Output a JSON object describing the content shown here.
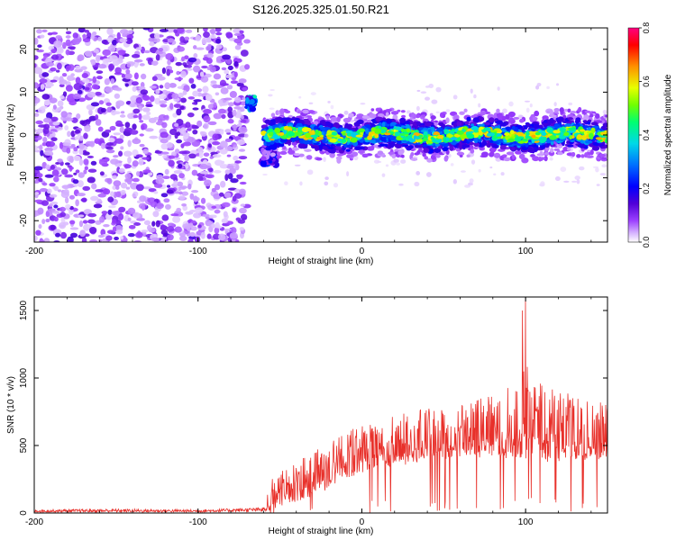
{
  "title": "S126.2025.325.01.50.R21",
  "chart_data": [
    {
      "type": "heatmap",
      "name": "spectrogram",
      "xlabel": "Height of straight line (km)",
      "ylabel": "Frequency (Hz)",
      "xlim": [
        -200,
        150
      ],
      "ylim": [
        -25,
        25
      ],
      "xticks": [
        -200,
        -100,
        0,
        100
      ],
      "yticks": [
        -20,
        -10,
        0,
        10,
        20
      ],
      "colorbar": {
        "label": "Normalized spectral amplitude",
        "range": [
          0.0,
          0.8
        ],
        "ticks": [
          "0.0",
          "0.2",
          "0.4",
          "0.6",
          "0.8"
        ],
        "colors": [
          "#ffffff",
          "#c7a2ff",
          "#8a2be2",
          "#5a00d0",
          "#0000ff",
          "#00a0ff",
          "#00e0e0",
          "#00ff80",
          "#80ff00",
          "#ffff00",
          "#ff9000",
          "#ff0000",
          "#ff0070"
        ]
      },
      "regions": [
        {
          "label": "noise",
          "x_range": [
            -200,
            -70
          ],
          "freq_range": [
            -25,
            25
          ],
          "amplitude": 0.1
        },
        {
          "label": "onset",
          "x_range": [
            -70,
            -65
          ],
          "freq_range": [
            6,
            9
          ],
          "amplitude": 0.45
        },
        {
          "label": "onset-lower",
          "x_range": [
            -62,
            -52
          ],
          "freq_range": [
            -7,
            -3
          ],
          "amplitude": 0.3
        },
        {
          "label": "signal",
          "x_range": [
            -60,
            150
          ],
          "center_freq": 0,
          "halfwidth": 2.5,
          "amplitude": 0.6
        }
      ]
    },
    {
      "type": "line",
      "name": "snr",
      "xlabel": "Height of straight line (km)",
      "ylabel": "SNR (10 * v/v)",
      "xlim": [
        -200,
        150
      ],
      "ylim": [
        0,
        1600
      ],
      "xticks": [
        -200,
        -100,
        0,
        100
      ],
      "yticks": [
        0,
        500,
        1000,
        1500
      ],
      "color": "#e8302a",
      "envelope": {
        "x": [
          -200,
          -150,
          -100,
          -60,
          -55,
          -50,
          -40,
          -30,
          -20,
          -10,
          0,
          10,
          20,
          30,
          40,
          50,
          60,
          70,
          80,
          90,
          100,
          110,
          120,
          130,
          140,
          150
        ],
        "low": [
          5,
          5,
          5,
          10,
          20,
          40,
          80,
          120,
          180,
          250,
          300,
          330,
          350,
          360,
          380,
          400,
          400,
          410,
          420,
          400,
          380,
          380,
          370,
          380,
          390,
          400
        ],
        "high": [
          25,
          30,
          25,
          40,
          250,
          300,
          380,
          450,
          520,
          600,
          650,
          680,
          720,
          750,
          780,
          800,
          820,
          850,
          880,
          950,
          1100,
          950,
          900,
          880,
          850,
          850
        ],
        "peaks": [
          {
            "x": 98,
            "y": 1500
          },
          {
            "x": 100,
            "y": 1580
          }
        ]
      }
    }
  ]
}
